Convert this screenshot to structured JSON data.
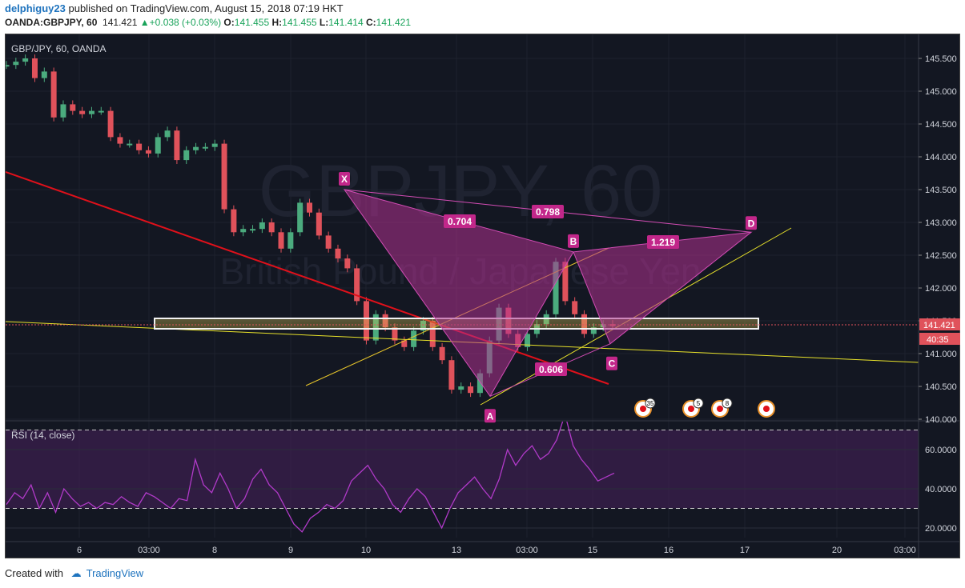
{
  "header": {
    "user": "delphiguy23",
    "published_text": "published on TradingView.com, August 15, 2018 07:19 HKT",
    "symbol": "OANDA:GBPJPY, 60",
    "last": "141.421",
    "change": "+0.038 (+0.03%)",
    "o_label": "O:",
    "o": "141.455",
    "h_label": "H:",
    "h": "141.455",
    "l_label": "L:",
    "l": "141.414",
    "c_label": "C:",
    "c": "141.421"
  },
  "colors": {
    "background": "#131722",
    "up_candle": "#4bab7e",
    "down_candle": "#e0525b",
    "pattern_fill": "#b0318f",
    "pattern_label": "#c2278a",
    "rsi_line": "#b13ac9",
    "trend_red": "#e0101a",
    "trend_yellow": "#e8e22a",
    "price_tag": "#e0525b"
  },
  "footer": {
    "created_with": "Created with",
    "brand": "TradingView"
  },
  "chart_data": [
    {
      "type": "candlestick",
      "title": "GBP/JPY, 60, OANDA",
      "watermark_symbol": "GBPJPY, 60",
      "watermark_name": "British Pound / Japanese Yen",
      "ylim": [
        140.0,
        145.7
      ],
      "y_ticks": [
        "145.500",
        "145.000",
        "144.500",
        "144.000",
        "143.500",
        "143.000",
        "142.500",
        "142.000",
        "141.500",
        "141.000",
        "140.500",
        "140.000"
      ],
      "x_ticks": [
        "6",
        "03:00",
        "8",
        "9",
        "10",
        "13",
        "03:00",
        "15",
        "16",
        "17",
        "20",
        "03:00"
      ],
      "last_price": "141.421",
      "countdown": "40:35",
      "close_path": [
        145.4,
        145.45,
        145.5,
        145.2,
        145.3,
        144.6,
        144.8,
        144.7,
        144.65,
        144.7,
        144.7,
        144.3,
        144.2,
        144.2,
        144.1,
        144.05,
        144.3,
        144.4,
        143.95,
        144.1,
        144.15,
        144.15,
        144.2,
        143.2,
        142.85,
        142.9,
        142.9,
        143.0,
        142.85,
        142.6,
        142.85,
        143.3,
        143.15,
        142.8,
        142.6,
        142.45,
        142.3,
        141.8,
        141.2,
        141.6,
        141.4,
        141.2,
        141.1,
        141.35,
        141.5,
        141.1,
        140.9,
        140.45,
        140.5,
        140.4,
        140.7,
        141.2,
        141.7,
        141.3,
        141.1,
        141.3,
        141.45,
        141.6,
        142.4,
        141.8,
        141.6,
        141.3,
        141.4,
        141.45,
        141.42
      ],
      "pattern_points": {
        "X": {
          "label": "X",
          "price": 143.5
        },
        "A": {
          "label": "A",
          "price": 140.35
        },
        "B": {
          "label": "B",
          "price": 142.55
        },
        "C": {
          "label": "C",
          "price": 141.15
        },
        "D": {
          "label": "D",
          "price": 142.85
        }
      },
      "ratios": [
        "0.704",
        "0.798",
        "1.219",
        "0.606"
      ],
      "event_badges": [
        "35",
        "5",
        "8",
        ""
      ]
    },
    {
      "type": "line",
      "title": "RSI (14, close)",
      "ylim": [
        13,
        80
      ],
      "y_ticks": [
        "60.0000",
        "40.0000",
        "20.0000"
      ],
      "bands": [
        70,
        30
      ],
      "values": [
        32,
        38,
        35,
        42,
        30,
        38,
        28,
        40,
        35,
        31,
        33,
        30,
        33,
        32,
        36,
        33,
        31,
        38,
        36,
        33,
        30,
        35,
        34,
        55,
        42,
        38,
        48,
        40,
        30,
        35,
        45,
        50,
        42,
        38,
        30,
        22,
        18,
        25,
        28,
        32,
        30,
        34,
        44,
        48,
        52,
        45,
        40,
        32,
        28,
        35,
        40,
        36,
        28,
        20,
        30,
        38,
        42,
        46,
        40,
        35,
        45,
        60,
        52,
        58,
        62,
        55,
        58,
        65,
        78,
        62,
        55,
        50,
        44,
        46,
        48
      ]
    }
  ]
}
